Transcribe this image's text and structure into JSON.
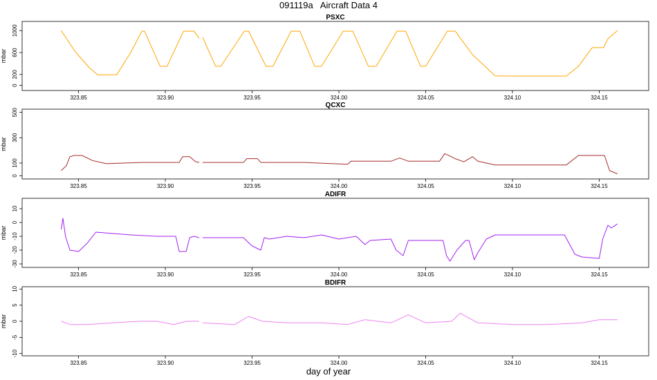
{
  "figure": {
    "title": "091119a   Aircraft Data 4",
    "xlabel": "day of year"
  },
  "chart_data": [
    {
      "type": "line",
      "title": "PSXC",
      "ylabel": "mbar",
      "color": "#FFA500",
      "xlim": [
        323.8175,
        324.1785
      ],
      "ylim": [
        -30,
        1080
      ],
      "yticks": [
        0,
        200,
        600,
        1000
      ],
      "xticks": [
        323.85,
        323.9,
        323.95,
        324.0,
        324.05,
        324.1,
        324.15
      ],
      "x_tick_labels": [
        "323.85",
        "323.90",
        "323.95",
        "324.00",
        "324.05",
        "324.10",
        "324.15"
      ],
      "y_tick_labels": [
        "0",
        "200",
        "600",
        "1000"
      ],
      "segments": [
        {
          "x": [
            323.84,
            323.848,
            323.856,
            323.861,
            323.872,
            323.88,
            323.8865,
            323.888,
            323.897,
            323.901,
            323.9105,
            323.9165,
            323.9195
          ],
          "y": [
            1000,
            620,
            330,
            195,
            195,
            600,
            990,
            990,
            350,
            350,
            990,
            990,
            860
          ]
        },
        {
          "x": [
            323.9215,
            323.929,
            323.932,
            323.9455,
            323.948,
            323.958,
            323.962,
            323.9725,
            323.9775,
            323.986,
            323.99,
            324.0025,
            324.008,
            324.017,
            324.0215,
            324.0335,
            324.0385,
            324.047,
            324.05,
            324.0625,
            324.067,
            324.077,
            324.09,
            324.102,
            324.131,
            324.138,
            324.146,
            324.1525,
            324.155,
            324.1575,
            324.1605
          ],
          "y": [
            880,
            350,
            350,
            990,
            990,
            350,
            350,
            990,
            990,
            350,
            350,
            990,
            990,
            350,
            350,
            990,
            990,
            350,
            350,
            990,
            990,
            560,
            175,
            170,
            170,
            350,
            690,
            690,
            850,
            920,
            1000
          ]
        }
      ]
    },
    {
      "type": "line",
      "title": "QCXC",
      "ylabel": "mbar",
      "color": "#A52A2A",
      "xlim": [
        323.8175,
        324.1785
      ],
      "ylim": [
        -20,
        520
      ],
      "yticks": [
        0,
        100,
        300,
        500
      ],
      "xticks": [
        323.85,
        323.9,
        323.95,
        324.0,
        324.05,
        324.1,
        324.15
      ],
      "x_tick_labels": [
        "323.85",
        "323.90",
        "323.95",
        "324.00",
        "324.05",
        "324.10",
        "324.15"
      ],
      "y_tick_labels": [
        "0",
        "100",
        "300",
        "500"
      ],
      "segments": [
        {
          "x": [
            323.84,
            323.843,
            323.845,
            323.8475,
            323.852,
            323.858,
            323.866,
            323.886,
            323.908,
            323.91,
            323.914,
            323.9175,
            323.9195
          ],
          "y": [
            40,
            80,
            150,
            160,
            160,
            120,
            95,
            105,
            105,
            150,
            150,
            110,
            105
          ]
        },
        {
          "x": [
            323.9215,
            323.945,
            323.947,
            323.953,
            323.955,
            323.98,
            324.005,
            324.007,
            324.03,
            324.035,
            324.04,
            324.058,
            324.061,
            324.067,
            324.072,
            324.077,
            324.08,
            324.09,
            324.131,
            324.138,
            324.153,
            324.156,
            324.1605
          ],
          "y": [
            105,
            105,
            135,
            135,
            105,
            105,
            90,
            115,
            115,
            140,
            115,
            115,
            175,
            135,
            110,
            150,
            115,
            85,
            85,
            160,
            160,
            40,
            15
          ]
        }
      ]
    },
    {
      "type": "line",
      "title": "ADIFR",
      "ylabel": "mbar",
      "color": "#A020F0",
      "xlim": [
        323.8175,
        324.1785
      ],
      "ylim": [
        -32,
        17
      ],
      "yticks": [
        -30,
        -20,
        -10,
        0,
        10
      ],
      "xticks": [
        323.85,
        323.9,
        323.95,
        324.0,
        324.05,
        324.1,
        324.15
      ],
      "x_tick_labels": [
        "323.85",
        "323.90",
        "323.95",
        "324.00",
        "324.05",
        "324.10",
        "324.15"
      ],
      "y_tick_labels": [
        "-30",
        "-20",
        "-10",
        "0",
        "10"
      ],
      "segments": [
        {
          "x": [
            323.84,
            323.841,
            323.8425,
            323.845,
            323.85,
            323.855,
            323.86,
            323.87,
            323.88,
            323.895,
            323.906,
            323.908,
            323.912,
            323.914,
            323.9165,
            323.9195
          ],
          "y": [
            -5,
            3,
            -10,
            -20,
            -21,
            -15,
            -7,
            -8,
            -9,
            -10,
            -10,
            -21,
            -21,
            -11,
            -10,
            -11
          ]
        },
        {
          "x": [
            323.9215,
            323.945,
            323.95,
            323.955,
            323.957,
            323.96,
            323.97,
            323.98,
            323.99,
            324.0,
            324.01,
            324.015,
            324.018,
            324.03,
            324.033,
            324.037,
            324.04,
            324.06,
            324.062,
            324.064,
            324.068,
            324.073,
            324.075,
            324.078,
            324.08,
            324.085,
            324.09,
            324.13,
            324.136,
            324.14,
            324.15,
            324.152,
            324.155,
            324.157,
            324.1605
          ],
          "y": [
            -11,
            -11,
            -17,
            -20,
            -11,
            -12,
            -10,
            -11,
            -9,
            -12,
            -10,
            -16,
            -13,
            -12,
            -20,
            -24,
            -13,
            -13,
            -24,
            -28,
            -20,
            -13,
            -13,
            -27,
            -22,
            -12,
            -9,
            -9,
            -23,
            -25,
            -26,
            -12,
            -2,
            -4,
            -1
          ]
        }
      ]
    },
    {
      "type": "line",
      "title": "BDIFR",
      "ylabel": "mbar",
      "color": "#EE82EE",
      "xlim": [
        323.8175,
        324.1785
      ],
      "ylim": [
        -10.5,
        10.5
      ],
      "yticks": [
        -10,
        -5,
        0,
        5,
        10
      ],
      "xticks": [
        323.85,
        323.9,
        323.95,
        324.0,
        324.05,
        324.1,
        324.15
      ],
      "x_tick_labels": [
        "323.85",
        "323.90",
        "323.95",
        "324.00",
        "324.05",
        "324.10",
        "324.15"
      ],
      "y_tick_labels": [
        "-10",
        "-5",
        "0",
        "5",
        "10"
      ],
      "segments": [
        {
          "x": [
            323.84,
            323.845,
            323.855,
            323.87,
            323.885,
            323.895,
            323.905,
            323.912,
            323.9195
          ],
          "y": [
            0,
            -1,
            -1,
            -0.5,
            0,
            0,
            -1,
            0,
            0
          ]
        },
        {
          "x": [
            323.9215,
            323.94,
            323.948,
            323.956,
            323.97,
            323.99,
            324.005,
            324.015,
            324.03,
            324.04,
            324.05,
            324.065,
            324.07,
            324.08,
            324.1,
            324.12,
            324.14,
            324.15,
            324.1605
          ],
          "y": [
            -0.5,
            -1,
            1.5,
            0,
            -0.5,
            -0.5,
            -1,
            0.5,
            -0.5,
            2,
            -0.5,
            0,
            2.5,
            -0.5,
            -1,
            -1,
            -0.5,
            0.5,
            0.5
          ]
        }
      ]
    }
  ]
}
